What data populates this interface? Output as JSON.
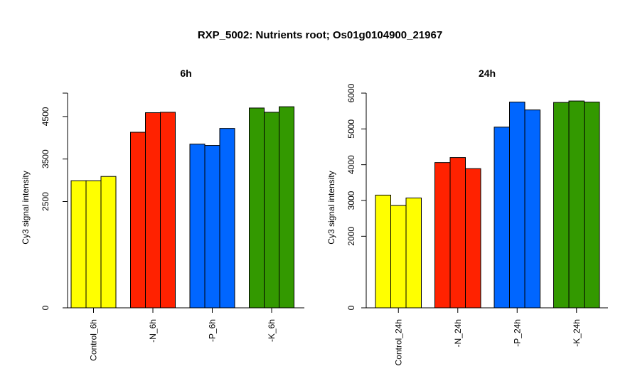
{
  "figure": {
    "title": "RXP_5002: Nutrients root; Os01g0104900_21967"
  },
  "chart_data": [
    {
      "type": "bar",
      "title": "6h",
      "ylabel": "Cy3 signal intensity",
      "xlabel": "",
      "ylim": [
        0,
        5050
      ],
      "yticks": [
        0,
        2500,
        3500,
        4500
      ],
      "grid": false,
      "categories": [
        "Control_6h",
        "-N_6h",
        "-P_6h",
        "-K_6h"
      ],
      "group_colors": [
        "#FFFF00",
        "#FF2200",
        "#0066FF",
        "#339900"
      ],
      "values": [
        [
          2990,
          2990,
          3090
        ],
        [
          4130,
          4590,
          4600
        ],
        [
          3850,
          3820,
          4220
        ],
        [
          4700,
          4600,
          4730
        ]
      ]
    },
    {
      "type": "bar",
      "title": "24h",
      "ylabel": "Cy3 signal intensity",
      "xlabel": "",
      "ylim": [
        0,
        6000
      ],
      "yticks": [
        0,
        2000,
        3000,
        4000,
        5000,
        6000
      ],
      "grid": false,
      "categories": [
        "Control_24h",
        "-N_24h",
        "-P_24h",
        "-K_24h"
      ],
      "group_colors": [
        "#FFFF00",
        "#FF2200",
        "#0066FF",
        "#339900"
      ],
      "values": [
        [
          3150,
          2860,
          3070
        ],
        [
          4060,
          4200,
          3890
        ],
        [
          5050,
          5750,
          5530
        ],
        [
          5740,
          5780,
          5750
        ]
      ]
    }
  ]
}
